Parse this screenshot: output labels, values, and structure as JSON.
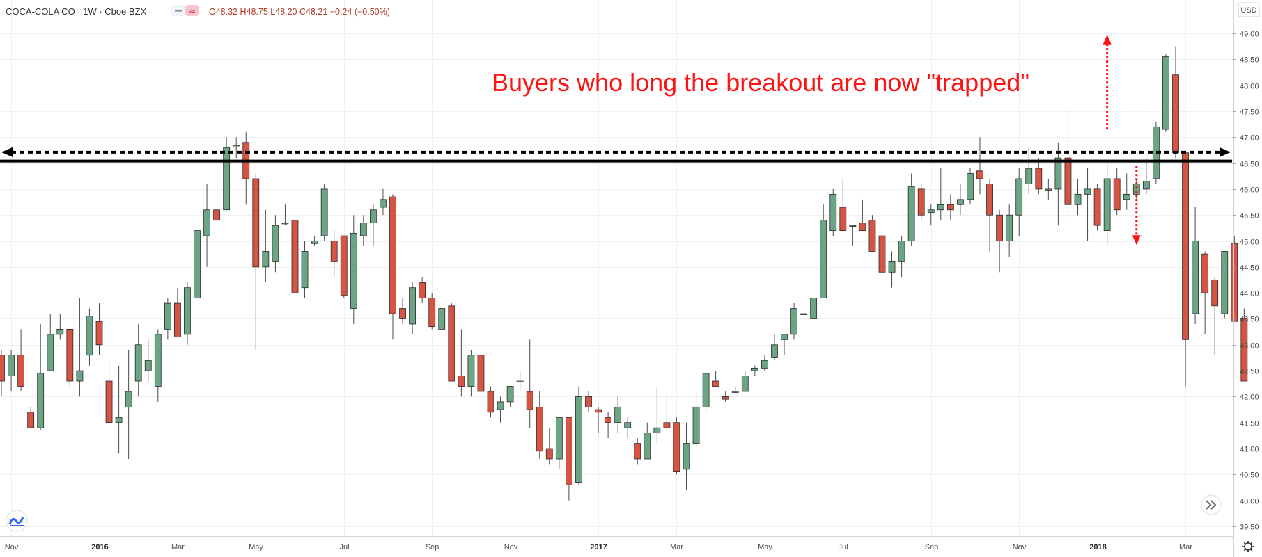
{
  "header": {
    "symbol": "COCA-COLA CO · 1W · Cboe BZX",
    "ohlc": "O48.32 H48.75 L48.20 C48.21 −0.24 (−0.50%)",
    "currency": "USD"
  },
  "icons": {
    "minimize": "minus-icon",
    "compare": "approx-icon",
    "logo": "tradingview-logo-icon",
    "scroll": "double-chevron-right-icon",
    "settings": "gear-icon"
  },
  "colors": {
    "up": "#6ba583",
    "down": "#d75442",
    "level": "#000000",
    "annotation": "#ff1212"
  },
  "chart_data": {
    "type": "candlestick",
    "title": "",
    "ylim": [
      39.25,
      49.35
    ],
    "grid": true,
    "y_ticks": [
      "39.50",
      "40.00",
      "40.50",
      "41.00",
      "41.50",
      "42.00",
      "42.50",
      "43.00",
      "43.50",
      "44.00",
      "44.50",
      "45.00",
      "45.50",
      "46.00",
      "46.50",
      "47.00",
      "47.50",
      "48.00",
      "48.50",
      "49.00"
    ],
    "x_ticks": [
      {
        "label": "Nov",
        "index": 1,
        "bold": false
      },
      {
        "label": "2016",
        "index": 10,
        "bold": true
      },
      {
        "label": "Mar",
        "index": 18,
        "bold": false
      },
      {
        "label": "May",
        "index": 26,
        "bold": false
      },
      {
        "label": "Jul",
        "index": 35,
        "bold": false
      },
      {
        "label": "Sep",
        "index": 44,
        "bold": false
      },
      {
        "label": "Nov",
        "index": 52,
        "bold": false
      },
      {
        "label": "2017",
        "index": 61,
        "bold": true
      },
      {
        "label": "Mar",
        "index": 69,
        "bold": false
      },
      {
        "label": "May",
        "index": 78,
        "bold": false
      },
      {
        "label": "Jul",
        "index": 86,
        "bold": false
      },
      {
        "label": "Sep",
        "index": 95,
        "bold": false
      },
      {
        "label": "Nov",
        "index": 104,
        "bold": false
      },
      {
        "label": "2018",
        "index": 112,
        "bold": true
      },
      {
        "label": "Mar",
        "index": 121,
        "bold": false
      }
    ],
    "candles": [
      [
        42.8,
        42.9,
        42.0,
        42.3
      ],
      [
        42.4,
        42.9,
        42.1,
        42.8
      ],
      [
        42.8,
        43.3,
        42.1,
        42.2
      ],
      [
        41.7,
        41.8,
        41.4,
        41.4
      ],
      [
        41.4,
        43.4,
        41.35,
        42.45
      ],
      [
        42.5,
        43.6,
        42.5,
        43.2
      ],
      [
        43.2,
        43.6,
        43.1,
        43.3
      ],
      [
        43.3,
        43.3,
        42.2,
        42.3
      ],
      [
        42.3,
        43.9,
        42.0,
        42.5
      ],
      [
        42.8,
        43.7,
        42.6,
        43.55
      ],
      [
        43.45,
        43.8,
        42.8,
        43.0
      ],
      [
        42.3,
        42.7,
        41.5,
        41.5
      ],
      [
        41.5,
        42.6,
        40.9,
        41.6
      ],
      [
        41.8,
        42.9,
        40.8,
        42.1
      ],
      [
        42.3,
        43.4,
        42.0,
        43.0
      ],
      [
        42.5,
        43.1,
        42.3,
        42.7
      ],
      [
        42.2,
        43.3,
        41.9,
        43.2
      ],
      [
        43.3,
        43.9,
        43.1,
        43.8
      ],
      [
        43.8,
        44.1,
        43.2,
        43.15
      ],
      [
        43.2,
        44.2,
        43.0,
        44.1
      ],
      [
        43.9,
        45.2,
        43.9,
        45.2
      ],
      [
        45.1,
        46.1,
        44.5,
        45.6
      ],
      [
        45.6,
        45.6,
        45.4,
        45.4
      ],
      [
        45.6,
        47.0,
        45.6,
        46.8
      ],
      [
        46.85,
        47.0,
        46.6,
        46.85
      ],
      [
        46.9,
        47.1,
        45.7,
        46.2
      ],
      [
        46.2,
        46.3,
        42.9,
        44.5
      ],
      [
        44.5,
        45.6,
        44.2,
        44.8
      ],
      [
        44.6,
        45.5,
        44.4,
        45.3
      ],
      [
        45.35,
        45.7,
        45.3,
        45.35
      ],
      [
        45.4,
        45.4,
        44.0,
        44.0
      ],
      [
        44.1,
        45.0,
        43.9,
        44.8
      ],
      [
        44.95,
        45.1,
        44.9,
        45.0
      ],
      [
        45.1,
        46.1,
        45.0,
        46.0
      ],
      [
        45.0,
        45.2,
        44.3,
        44.6
      ],
      [
        45.1,
        45.1,
        43.9,
        43.95
      ],
      [
        43.7,
        45.5,
        43.4,
        45.15
      ],
      [
        45.1,
        45.5,
        44.9,
        45.35
      ],
      [
        45.35,
        45.7,
        44.9,
        45.6
      ],
      [
        45.65,
        46.0,
        45.5,
        45.8
      ],
      [
        45.85,
        45.9,
        43.1,
        43.6
      ],
      [
        43.7,
        43.9,
        43.4,
        43.5
      ],
      [
        43.4,
        44.2,
        43.2,
        44.1
      ],
      [
        44.2,
        44.3,
        43.8,
        43.9
      ],
      [
        43.9,
        44.0,
        43.3,
        43.35
      ],
      [
        43.3,
        43.7,
        43.3,
        43.7
      ],
      [
        43.75,
        43.8,
        42.3,
        42.3
      ],
      [
        42.4,
        43.3,
        42.0,
        42.2
      ],
      [
        42.2,
        42.9,
        42.0,
        42.8
      ],
      [
        42.8,
        42.8,
        42.1,
        42.1
      ],
      [
        42.1,
        42.2,
        41.6,
        41.7
      ],
      [
        41.75,
        42.0,
        41.5,
        41.9
      ],
      [
        41.9,
        42.2,
        41.8,
        42.2
      ],
      [
        42.3,
        42.5,
        42.1,
        42.3
      ],
      [
        42.1,
        43.1,
        41.4,
        41.75
      ],
      [
        41.8,
        42.1,
        40.8,
        40.95
      ],
      [
        41.0,
        41.4,
        40.7,
        40.8
      ],
      [
        40.8,
        41.6,
        40.6,
        41.6
      ],
      [
        41.6,
        41.6,
        40.0,
        40.3
      ],
      [
        40.35,
        42.2,
        40.3,
        42.0
      ],
      [
        42.0,
        42.1,
        41.7,
        41.8
      ],
      [
        41.75,
        41.8,
        41.3,
        41.7
      ],
      [
        41.6,
        41.7,
        41.2,
        41.5
      ],
      [
        41.5,
        42.0,
        41.3,
        41.8
      ],
      [
        41.4,
        41.6,
        41.2,
        41.5
      ],
      [
        41.1,
        41.2,
        40.7,
        40.8
      ],
      [
        40.8,
        41.5,
        40.8,
        41.3
      ],
      [
        41.3,
        42.2,
        41.1,
        41.4
      ],
      [
        41.5,
        42.0,
        41.4,
        41.4
      ],
      [
        41.5,
        41.6,
        40.5,
        40.55
      ],
      [
        40.6,
        41.5,
        40.2,
        41.1
      ],
      [
        41.1,
        42.1,
        41.0,
        41.8
      ],
      [
        41.8,
        42.5,
        41.7,
        42.45
      ],
      [
        42.3,
        42.5,
        42.2,
        42.2
      ],
      [
        42.0,
        42.1,
        41.9,
        41.95
      ],
      [
        42.1,
        42.2,
        42.1,
        42.1
      ],
      [
        42.1,
        42.5,
        42.1,
        42.4
      ],
      [
        42.5,
        42.6,
        42.4,
        42.55
      ],
      [
        42.55,
        42.8,
        42.5,
        42.7
      ],
      [
        42.75,
        43.2,
        42.7,
        43.0
      ],
      [
        43.1,
        43.2,
        42.8,
        43.2
      ],
      [
        43.2,
        43.8,
        43.1,
        43.7
      ],
      [
        43.6,
        43.6,
        43.6,
        43.6
      ],
      [
        43.5,
        43.9,
        43.5,
        43.9
      ],
      [
        43.9,
        45.7,
        43.9,
        45.4
      ],
      [
        45.2,
        46.0,
        45.1,
        45.9
      ],
      [
        45.65,
        46.2,
        45.3,
        45.2
      ],
      [
        45.3,
        45.3,
        44.9,
        45.3
      ],
      [
        45.35,
        45.8,
        45.2,
        45.2
      ],
      [
        45.4,
        45.5,
        44.8,
        44.8
      ],
      [
        45.1,
        45.2,
        44.2,
        44.4
      ],
      [
        44.4,
        44.8,
        44.1,
        44.6
      ],
      [
        44.6,
        45.1,
        44.3,
        45.0
      ],
      [
        45.0,
        46.3,
        44.9,
        46.05
      ],
      [
        46.0,
        46.1,
        45.4,
        45.5
      ],
      [
        45.55,
        45.7,
        45.3,
        45.6
      ],
      [
        45.6,
        46.4,
        45.4,
        45.7
      ],
      [
        45.7,
        45.9,
        45.4,
        45.6
      ],
      [
        45.7,
        46.1,
        45.5,
        45.8
      ],
      [
        45.8,
        46.4,
        45.7,
        46.3
      ],
      [
        46.35,
        47.0,
        45.9,
        46.2
      ],
      [
        46.1,
        46.2,
        44.8,
        45.5
      ],
      [
        45.5,
        45.6,
        44.4,
        45.0
      ],
      [
        45.0,
        45.7,
        44.7,
        45.5
      ],
      [
        45.5,
        46.4,
        45.1,
        46.2
      ],
      [
        46.1,
        46.8,
        45.9,
        46.4
      ],
      [
        46.4,
        46.6,
        45.9,
        46.0
      ],
      [
        46.0,
        46.2,
        45.8,
        46.0
      ],
      [
        46.0,
        46.9,
        45.3,
        46.6
      ],
      [
        46.6,
        47.5,
        45.4,
        45.7
      ],
      [
        45.7,
        46.2,
        45.5,
        45.9
      ],
      [
        45.9,
        46.4,
        45.0,
        46.0
      ],
      [
        46.0,
        46.1,
        45.2,
        45.3
      ],
      [
        45.2,
        46.5,
        44.9,
        46.2
      ],
      [
        46.2,
        46.4,
        45.5,
        45.6
      ],
      [
        45.8,
        46.3,
        45.6,
        45.9
      ],
      [
        45.9,
        46.2,
        45.8,
        46.1
      ],
      [
        46.0,
        46.6,
        45.9,
        46.15
      ],
      [
        46.2,
        47.3,
        46.1,
        47.2
      ],
      [
        47.15,
        48.6,
        47.1,
        48.55
      ],
      [
        48.2,
        48.75,
        46.6,
        46.7
      ],
      [
        46.7,
        46.7,
        42.2,
        43.1
      ],
      [
        43.6,
        45.65,
        43.4,
        45.0
      ],
      [
        44.75,
        44.8,
        43.2,
        44.0
      ],
      [
        44.25,
        44.3,
        42.8,
        43.75
      ],
      [
        43.6,
        44.8,
        43.5,
        44.8
      ],
      [
        44.95,
        45.1,
        43.5,
        43.45
      ],
      [
        43.5,
        43.7,
        42.3,
        42.3
      ]
    ],
    "levels": [
      {
        "price": 46.54,
        "style": "solid",
        "width": 4
      },
      {
        "price": 46.71,
        "style": "dashed",
        "width": 4,
        "arrows": "both"
      }
    ],
    "annotation": {
      "text": "Buyers who long the breakout are now \"trapped\"",
      "arrow_up": {
        "index": 113,
        "from": 47.15,
        "to": 48.95
      },
      "arrow_down": {
        "index": 116,
        "from": 46.45,
        "to": 44.95
      }
    }
  }
}
